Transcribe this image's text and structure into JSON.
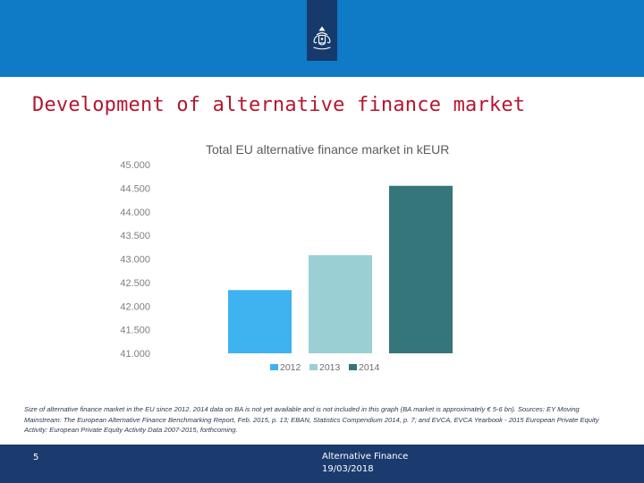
{
  "header": {
    "brand_color": "#0f7ac6",
    "emblem_color": "#173a6c",
    "emblem_icon": "coat-of-arms-icon"
  },
  "slide": {
    "title": "Development of alternative finance market",
    "title_color": "#b5162f"
  },
  "chart_data": {
    "type": "bar",
    "title": "Total EU alternative finance market in kEUR",
    "xlabel": "",
    "ylabel": "",
    "ylim": [
      41000,
      45000
    ],
    "yticks": [
      41000,
      41500,
      42000,
      42500,
      43000,
      43500,
      44000,
      44500,
      45000
    ],
    "ytick_labels": [
      "41.000",
      "41.500",
      "42.000",
      "42.500",
      "43.000",
      "43.500",
      "44.000",
      "44.500",
      "45.000"
    ],
    "grid": false,
    "legend_position": "bottom",
    "series": [
      {
        "name": "2012",
        "values": [
          42340
        ],
        "color": "#3fb2f0"
      },
      {
        "name": "2013",
        "values": [
          43080
        ],
        "color": "#9acfd4"
      },
      {
        "name": "2014",
        "values": [
          44550
        ],
        "color": "#35767a"
      }
    ]
  },
  "source_note": "Size of alternative finance market in the EU since 2012. 2014 data on BA is not yet available and is not included in this graph (BA market is approximately € 5-6 bn). Sources: EY Moving Mainstream: The European Alternative Finance Benchmarking Report, Feb. 2015, p. 13; EBAN, Statistics Compendium 2014, p. 7; and EVCA, EVCA Yearbook - 2015 European Private Equity Activity: European Private Equity Activity Data 2007-2015, forthcoming.",
  "footer": {
    "page_number": "5",
    "title": "Alternative Finance",
    "date": "19/03/2018",
    "color": "#1b3b6f"
  }
}
